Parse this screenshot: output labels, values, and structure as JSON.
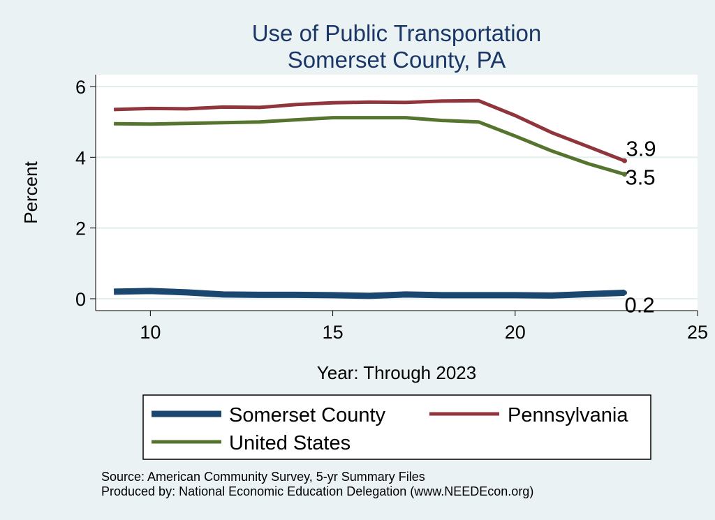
{
  "chart_data": {
    "type": "line",
    "title": [
      "Use of Public Transportation",
      "Somerset County, PA"
    ],
    "xlabel": "Year: Through 2023",
    "ylabel": "Percent",
    "xlim": [
      8.5,
      25
    ],
    "ylim": [
      0,
      6
    ],
    "xticks": [
      10,
      15,
      20,
      25
    ],
    "yticks": [
      0,
      2,
      4,
      6
    ],
    "grid": true,
    "legend_position": "bottom",
    "series": [
      {
        "name": "Somerset County",
        "color": "#1a476f",
        "x": [
          9,
          10,
          11,
          12,
          13,
          14,
          15,
          16,
          17,
          18,
          19,
          20,
          21,
          22,
          23
        ],
        "y": [
          0.2,
          0.22,
          0.18,
          0.12,
          0.11,
          0.11,
          0.1,
          0.08,
          0.12,
          0.1,
          0.1,
          0.1,
          0.09,
          0.13,
          0.17
        ],
        "end_label": "0.2"
      },
      {
        "name": "Pennsylvania",
        "color": "#90353b",
        "x": [
          9,
          10,
          11,
          12,
          13,
          14,
          15,
          16,
          17,
          18,
          19,
          20,
          21,
          22,
          23
        ],
        "y": [
          5.35,
          5.38,
          5.37,
          5.42,
          5.41,
          5.49,
          5.54,
          5.56,
          5.55,
          5.59,
          5.6,
          5.18,
          4.7,
          4.3,
          3.9
        ],
        "end_label": "3.9"
      },
      {
        "name": "United States",
        "color": "#55752f",
        "x": [
          9,
          10,
          11,
          12,
          13,
          14,
          15,
          16,
          17,
          18,
          19,
          20,
          21,
          22,
          23
        ],
        "y": [
          4.95,
          4.94,
          4.96,
          4.98,
          5.0,
          5.06,
          5.12,
          5.12,
          5.12,
          5.04,
          5.0,
          4.6,
          4.18,
          3.82,
          3.52
        ],
        "end_label": "3.5"
      }
    ],
    "notes": [
      "Source: American Community Survey, 5-yr Summary Files",
      "Produced by: National Economic Education Delegation (www.NEEDEcon.org)"
    ]
  }
}
